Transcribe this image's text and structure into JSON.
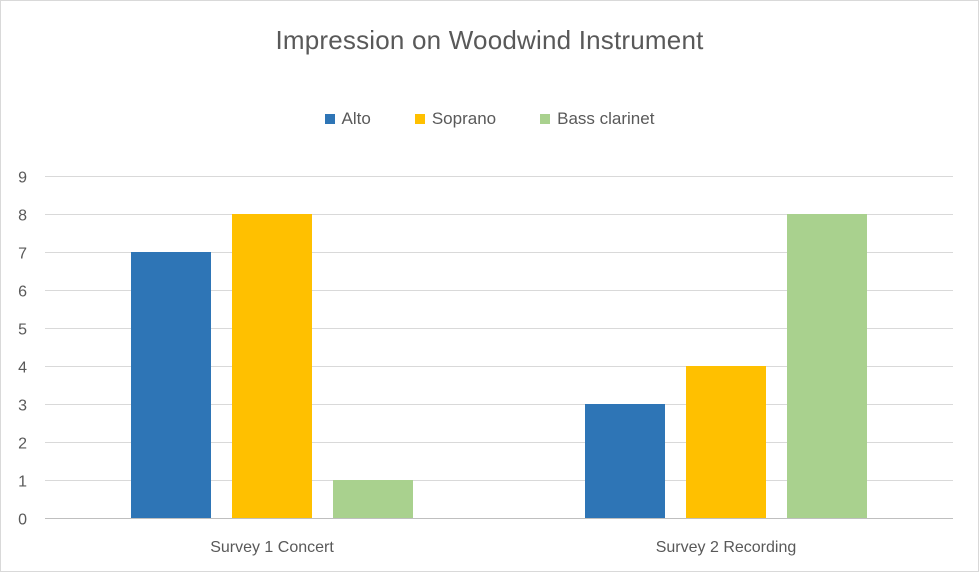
{
  "chart_data": {
    "type": "bar",
    "title": "Impression on Woodwind Instrument",
    "categories": [
      "Survey 1 Concert",
      "Survey 2 Recording"
    ],
    "series": [
      {
        "name": "Alto",
        "color": "#2e75b6",
        "values": [
          7,
          3
        ]
      },
      {
        "name": "Soprano",
        "color": "#ffc000",
        "values": [
          8,
          4
        ]
      },
      {
        "name": "Bass clarinet",
        "color": "#a9d18e",
        "values": [
          1,
          8
        ]
      }
    ],
    "xlabel": "",
    "ylabel": "",
    "ylim": [
      0,
      9
    ],
    "yticks": [
      "0",
      "1",
      "2",
      "3",
      "4",
      "5",
      "6",
      "7",
      "8",
      "9"
    ],
    "grid": true,
    "legend_position": "top"
  }
}
